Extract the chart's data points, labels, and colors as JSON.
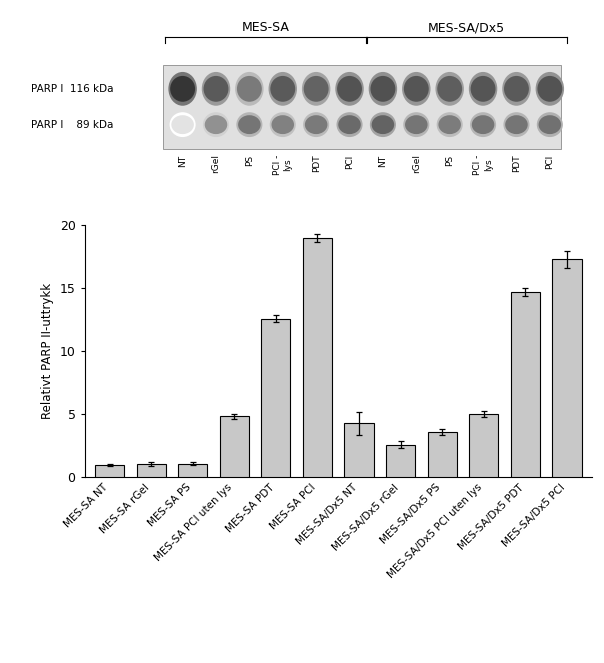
{
  "categories": [
    "MES-SA NT",
    "MES-SA rGel",
    "MES-SA PS",
    "MES-SA PCI uten lys",
    "MES-SA PDT",
    "MES-SA PCI",
    "MES-SA/Dx5 NT",
    "MES-SA/Dx5 rGel",
    "MES-SA/Dx5 PS",
    "MES-SA/Dx5 PCI uten lys",
    "MES-SA/Dx5 PDT",
    "MES-SA/Dx5 PCI"
  ],
  "values": [
    1.0,
    1.05,
    1.1,
    4.85,
    12.6,
    19.0,
    4.3,
    2.6,
    3.6,
    5.05,
    14.7,
    17.3
  ],
  "errors": [
    0.1,
    0.15,
    0.12,
    0.2,
    0.25,
    0.3,
    0.9,
    0.25,
    0.25,
    0.25,
    0.3,
    0.7
  ],
  "bar_color": "#c8c8c8",
  "bar_edgecolor": "#000000",
  "ylim": [
    0,
    20
  ],
  "yticks": [
    0,
    5,
    10,
    15,
    20
  ],
  "ylabel": "Relativt PARP II-uttrykk",
  "blot_lane_labels": [
    "NT",
    "rGel",
    "PS",
    "PCI -\nlys",
    "PDT",
    "PCI",
    "NT",
    "rGel",
    "PS",
    "PCI -\nlys",
    "PDT",
    "PCI"
  ],
  "blot_row_labels": [
    "PARP I  116 kDa",
    "PARP I    89 kDa"
  ],
  "blot_upper_intensities": [
    0.88,
    0.72,
    0.58,
    0.72,
    0.68,
    0.75,
    0.76,
    0.74,
    0.7,
    0.74,
    0.72,
    0.75
  ],
  "blot_lower_intensities": [
    0.12,
    0.48,
    0.6,
    0.55,
    0.58,
    0.65,
    0.68,
    0.6,
    0.57,
    0.6,
    0.6,
    0.62
  ],
  "background_color": "#ffffff",
  "fig_width": 6.04,
  "fig_height": 6.63,
  "dpi": 100
}
